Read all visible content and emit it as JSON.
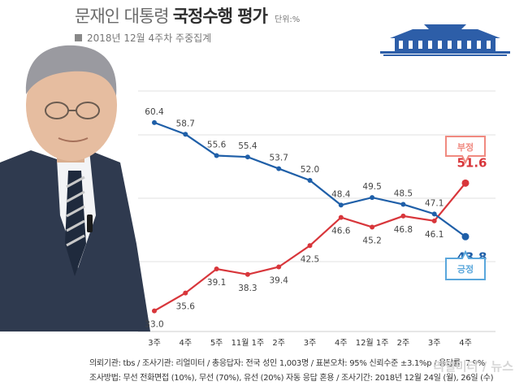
{
  "header": {
    "title_prefix": "문재인 대통령",
    "title_bold": "국정수행 평가",
    "unit": "단위:%",
    "subtitle": "2018년 12월 4주차 주중집계"
  },
  "colors": {
    "negative": "#d8363b",
    "positive": "#1f5fa8",
    "plot_bg": "#ffffff",
    "grid": "#e2e2e2",
    "palace": "#2d5ea8",
    "negative_bubble": "#f08a80",
    "positive_bubble": "#5aa7dc"
  },
  "labels": {
    "negative_badge": "부정",
    "positive_badge": "긍정"
  },
  "chart_data": {
    "type": "line",
    "categories": [
      "3주",
      "4주",
      "5주",
      "11월 1주",
      "2주",
      "3주",
      "4주",
      "12월 1주",
      "2주",
      "3주",
      "4주"
    ],
    "series": [
      {
        "name": "부정",
        "values": [
          33.0,
          35.6,
          39.1,
          38.3,
          39.4,
          42.5,
          46.6,
          45.2,
          46.8,
          46.1,
          51.6
        ]
      },
      {
        "name": "긍정",
        "values": [
          60.4,
          58.7,
          55.6,
          55.4,
          53.7,
          52.0,
          48.4,
          49.5,
          48.5,
          47.1,
          43.8
        ]
      }
    ],
    "value_labels": {
      "부정": [
        "33.0",
        "35.6",
        "39.1",
        "38.3",
        "39.4",
        "42.5",
        "46.6",
        "45.2",
        "46.8",
        "46.1",
        "51.6"
      ],
      "긍정": [
        "60.4",
        "58.7",
        "55.6",
        "55.4",
        "53.7",
        "52.0",
        "48.4",
        "49.5",
        "48.5",
        "47.1",
        "43.8"
      ]
    },
    "ylim": [
      30,
      65
    ],
    "grid": true
  },
  "footer": {
    "line1": "의뢰기관: tbs / 조사기관: 리얼미터 / 총응답자: 전국 성인 1,003명 / 표본오차: 95% 신뢰수준 ±3.1%p / 응답률: 7.9%",
    "line2": "조사방법: 무선 전화면접 (10%), 무선 (70%), 유선 (20%) 자동 응답 혼용 / 조사기간: 2018년 12월 24일 (월), 26일 (수)"
  },
  "watermark": "리얼미터 / 뉴스"
}
